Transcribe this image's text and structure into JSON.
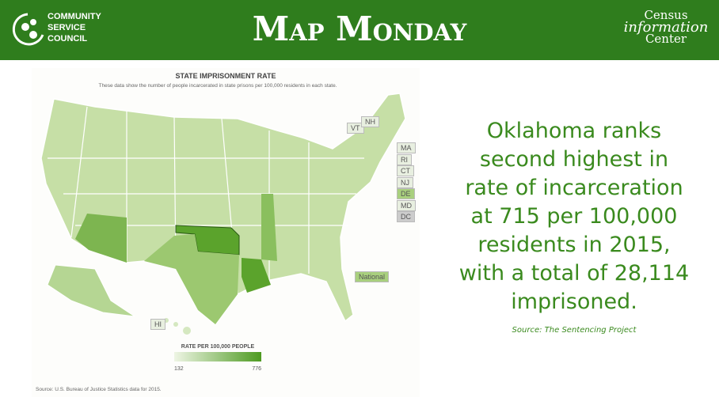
{
  "header": {
    "org_logo": [
      "COMMUNITY",
      "SERVICE",
      "COUNCIL"
    ],
    "title": "Map Monday",
    "partner_logo": [
      "Census",
      "information",
      "Center"
    ]
  },
  "map": {
    "title": "STATE IMPRISONMENT RATE",
    "subtitle": "These data show the number of people incarcerated in state prisons per 100,000 residents in each state.",
    "state_labels": [
      "VT",
      "NH",
      "MA",
      "RI",
      "CT",
      "NJ",
      "DE",
      "MD",
      "DC",
      "National",
      "HI"
    ],
    "legend": {
      "title": "RATE PER 100,000 PEOPLE",
      "min": "132",
      "max": "776"
    },
    "source": "Source: U.S. Bureau of Justice Statistics data for 2015."
  },
  "callout": {
    "lines": [
      "Oklahoma ranks",
      "second highest in",
      "rate of incarceration",
      "at 715 per 100,000",
      "residents in 2015,",
      "with a total of 28,114",
      "imprisoned."
    ],
    "source": "Source:  The Sentencing Project"
  }
}
